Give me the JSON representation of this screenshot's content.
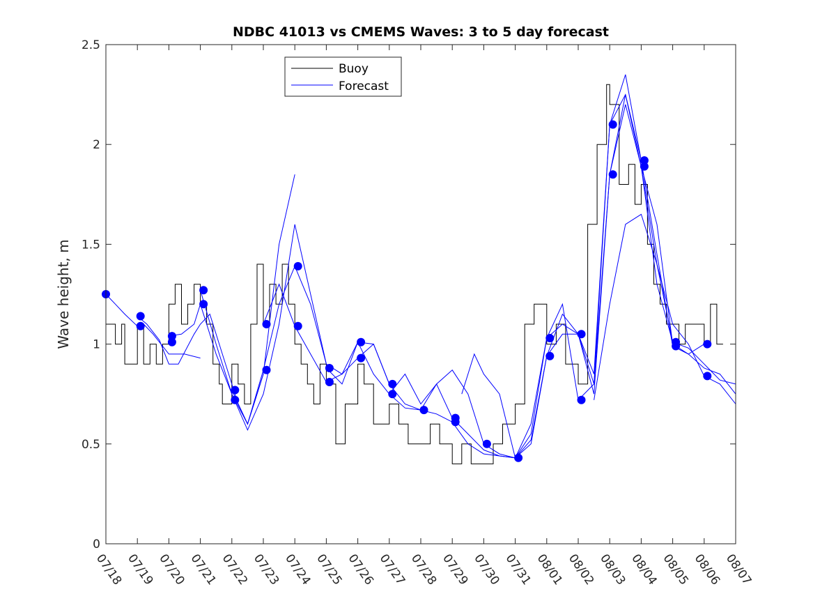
{
  "chart_data": {
    "type": "line",
    "title": "NDBC 41013 vs CMEMS Waves: 3 to 5 day forecast",
    "xlabel": "",
    "ylabel": "Wave height, m",
    "x_ticks": [
      "07/18",
      "07/19",
      "07/20",
      "07/21",
      "07/22",
      "07/23",
      "07/24",
      "07/25",
      "07/26",
      "07/27",
      "07/28",
      "07/29",
      "07/30",
      "07/31",
      "08/01",
      "08/02",
      "08/03",
      "08/04",
      "08/05",
      "08/06",
      "08/07"
    ],
    "y_ticks": [
      "0",
      "0.5",
      "1",
      "1.5",
      "2",
      "2.5"
    ],
    "xlim": [
      0,
      20
    ],
    "ylim": [
      0,
      2.5
    ],
    "grid": false,
    "legend": {
      "placement": "top-left-center",
      "entries": [
        {
          "label": "Buoy",
          "color": "#000000"
        },
        {
          "label": "Forecast",
          "color": "#0000ff"
        }
      ]
    },
    "colors": {
      "buoy": "#000000",
      "forecast": "#0000ff",
      "marker": "#0000ff"
    },
    "buoy": {
      "x": [
        0,
        0.3,
        0.5,
        0.6,
        0.9,
        1.0,
        1.2,
        1.4,
        1.6,
        1.8,
        2.0,
        2.2,
        2.4,
        2.6,
        2.8,
        3.0,
        3.2,
        3.4,
        3.6,
        3.7,
        4.0,
        4.2,
        4.4,
        4.6,
        4.8,
        5.0,
        5.2,
        5.4,
        5.6,
        5.8,
        6.0,
        6.2,
        6.4,
        6.6,
        6.8,
        7.0,
        7.3,
        7.6,
        8.0,
        8.2,
        8.5,
        8.8,
        9.0,
        9.3,
        9.6,
        10.0,
        10.3,
        10.6,
        11.0,
        11.3,
        11.6,
        12.0,
        12.3,
        12.6,
        13.0,
        13.3,
        13.6,
        14.0,
        14.3,
        14.6,
        15.0,
        15.3,
        15.6,
        15.9,
        16.0,
        16.3,
        16.6,
        16.8,
        17.0,
        17.2,
        17.4,
        17.6,
        17.8,
        18.0,
        18.2,
        18.4,
        18.6,
        18.8,
        19.0,
        19.2,
        19.4
      ],
      "y": [
        1.1,
        1.0,
        1.1,
        0.9,
        0.9,
        1.1,
        0.9,
        1.0,
        0.9,
        1.0,
        1.2,
        1.3,
        1.1,
        1.2,
        1.3,
        1.2,
        1.1,
        0.9,
        0.8,
        0.7,
        0.9,
        0.8,
        0.7,
        1.1,
        1.4,
        1.1,
        1.3,
        1.2,
        1.4,
        1.2,
        1.0,
        0.9,
        0.8,
        0.7,
        0.9,
        0.8,
        0.5,
        0.7,
        0.9,
        0.8,
        0.6,
        0.6,
        0.7,
        0.6,
        0.5,
        0.5,
        0.6,
        0.5,
        0.4,
        0.5,
        0.4,
        0.4,
        0.5,
        0.6,
        0.7,
        1.1,
        1.2,
        1.0,
        1.1,
        0.9,
        0.8,
        1.6,
        2.0,
        2.3,
        2.2,
        1.8,
        1.9,
        1.7,
        1.8,
        1.5,
        1.3,
        1.2,
        1.1,
        1.1,
        1.0,
        1.1,
        1.1,
        1.1,
        1.0,
        1.2,
        1.0
      ]
    },
    "forecasts": [
      {
        "x": [
          0,
          0.3,
          0.6,
          1.0,
          1.2,
          1.5,
          2.0,
          2.5,
          3.0
        ],
        "y": [
          1.25,
          1.2,
          1.15,
          1.09,
          1.1,
          1.05,
          0.95,
          0.95,
          0.93
        ]
      },
      {
        "x": [
          1.0,
          1.3,
          1.7,
          2.0,
          2.3,
          2.8,
          3.0,
          3.3,
          3.7,
          4.0,
          4.2,
          4.5,
          5.0
        ],
        "y": [
          1.14,
          1.1,
          1.02,
          0.9,
          0.9,
          1.05,
          1.1,
          1.15,
          0.95,
          0.8,
          0.7,
          0.6,
          0.85
        ]
      },
      {
        "x": [
          2.0,
          2.4,
          2.8,
          3.0,
          3.5,
          4.0,
          4.5,
          5.0,
          5.5,
          6.0
        ],
        "y": [
          1.04,
          1.05,
          1.1,
          1.2,
          0.95,
          0.75,
          0.6,
          0.85,
          1.5,
          1.85
        ]
      },
      {
        "x": [
          3.0,
          3.5,
          4.0,
          4.5,
          5.0,
          5.5,
          6.0,
          6.5,
          7.0
        ],
        "y": [
          1.27,
          1.0,
          0.75,
          0.57,
          0.75,
          1.1,
          1.6,
          1.25,
          0.9
        ]
      },
      {
        "x": [
          4.0,
          4.5,
          5.0,
          5.5,
          6.0,
          6.5,
          7.0,
          7.5,
          8.0
        ],
        "y": [
          0.77,
          0.6,
          0.87,
          1.2,
          1.39,
          1.2,
          0.9,
          0.85,
          1.01
        ]
      },
      {
        "x": [
          5.0,
          5.5,
          6.0,
          6.5,
          7.0,
          7.5,
          8.0,
          8.5,
          9.0
        ],
        "y": [
          1.1,
          1.3,
          1.09,
          0.95,
          0.81,
          0.85,
          0.93,
          1.0,
          0.8
        ]
      },
      {
        "x": [
          7.0,
          7.5,
          8.0,
          8.5,
          9.0,
          9.5,
          10.0
        ],
        "y": [
          0.88,
          0.8,
          1.01,
          0.85,
          0.75,
          0.68,
          0.67
        ]
      },
      {
        "x": [
          8.0,
          8.5,
          9.0,
          9.5,
          10.0,
          10.5,
          11.0
        ],
        "y": [
          1.01,
          1.0,
          0.8,
          0.7,
          0.67,
          0.65,
          0.61
        ]
      },
      {
        "x": [
          9.0,
          9.5,
          10.0,
          10.5,
          11.0,
          11.5,
          12.0
        ],
        "y": [
          0.75,
          0.85,
          0.7,
          0.8,
          0.87,
          0.75,
          0.5
        ]
      },
      {
        "x": [
          10.0,
          10.5,
          11.0,
          11.5,
          12.0,
          12.5,
          13.0
        ],
        "y": [
          0.67,
          0.8,
          0.63,
          0.55,
          0.47,
          0.44,
          0.43
        ]
      },
      {
        "x": [
          11.0,
          11.5,
          12.0,
          12.5,
          13.0,
          13.5,
          14.0
        ],
        "y": [
          0.61,
          0.5,
          0.45,
          0.44,
          0.43,
          0.6,
          1.03
        ]
      },
      {
        "x": [
          11.3,
          11.7,
          12.0,
          12.5,
          13.0,
          13.5,
          14.0,
          14.5,
          15.0
        ],
        "y": [
          0.75,
          0.95,
          0.85,
          0.75,
          0.43,
          0.5,
          0.94,
          1.05,
          1.05
        ]
      },
      {
        "x": [
          12.0,
          12.5,
          13.0,
          13.5,
          14.0,
          14.5,
          15.0,
          15.5,
          16.0
        ],
        "y": [
          0.5,
          0.45,
          0.43,
          0.55,
          1.03,
          1.2,
          0.72,
          0.8,
          1.85
        ]
      },
      {
        "x": [
          13.0,
          13.5,
          14.0,
          14.5,
          15.0,
          15.5,
          16.0,
          16.5,
          17.0
        ],
        "y": [
          0.43,
          0.52,
          0.94,
          1.15,
          1.05,
          0.85,
          2.1,
          2.35,
          1.92
        ]
      },
      {
        "x": [
          14.0,
          14.5,
          15.0,
          15.5,
          16.0,
          16.5,
          17.0,
          17.5,
          18.0
        ],
        "y": [
          1.03,
          1.1,
          1.05,
          0.75,
          1.85,
          2.2,
          1.89,
          1.3,
          1.01
        ]
      },
      {
        "x": [
          15.0,
          15.5,
          16.0,
          16.5,
          17.0,
          17.5,
          18.0,
          18.5,
          19.0
        ],
        "y": [
          1.05,
          0.8,
          2.1,
          2.25,
          1.92,
          1.45,
          0.99,
          0.95,
          1.0
        ]
      },
      {
        "x": [
          15.5,
          16.0,
          16.5,
          17.0,
          17.5,
          18.0,
          18.5,
          19.0,
          19.5,
          20.0
        ],
        "y": [
          0.72,
          1.2,
          1.6,
          1.65,
          1.4,
          1.1,
          1.0,
          0.84,
          0.8,
          0.7
        ]
      },
      {
        "x": [
          16.0,
          16.5,
          17.0,
          17.5,
          18.0,
          18.5,
          19.0,
          19.5,
          20.0
        ],
        "y": [
          1.85,
          2.25,
          1.89,
          1.6,
          1.0,
          0.95,
          0.88,
          0.85,
          0.75
        ]
      },
      {
        "x": [
          17.0,
          17.5,
          18.0,
          18.5,
          19.0,
          19.5,
          20.0
        ],
        "y": [
          1.89,
          1.4,
          1.01,
          0.98,
          0.9,
          0.82,
          0.8
        ]
      }
    ],
    "markers": {
      "x": [
        0,
        1.1,
        1.1,
        2.1,
        2.1,
        3.1,
        3.1,
        4.1,
        4.1,
        5.1,
        5.1,
        6.1,
        6.1,
        7.1,
        7.1,
        8.1,
        8.1,
        9.1,
        9.1,
        10.1,
        11.1,
        11.1,
        12.1,
        13.1,
        14.1,
        14.1,
        15.1,
        15.1,
        16.1,
        16.1,
        17.1,
        17.1,
        18.1,
        18.1,
        19.1,
        19.1
      ],
      "y": [
        1.25,
        1.14,
        1.09,
        1.04,
        1.01,
        1.27,
        1.2,
        0.77,
        0.72,
        1.1,
        0.87,
        1.39,
        1.09,
        0.88,
        0.81,
        1.01,
        0.93,
        0.8,
        0.75,
        0.67,
        0.63,
        0.61,
        0.5,
        0.43,
        1.03,
        0.94,
        1.05,
        0.72,
        2.1,
        1.85,
        1.92,
        1.89,
        1.01,
        0.99,
        1.0,
        0.84
      ]
    }
  }
}
